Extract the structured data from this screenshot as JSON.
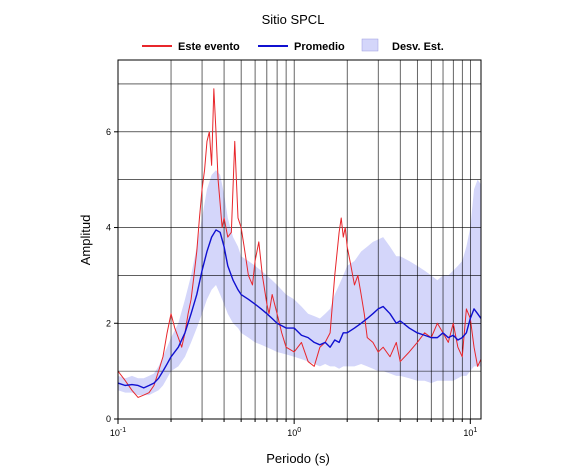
{
  "chart_data": {
    "type": "line",
    "title": "Sitio SPCL",
    "xlabel": "Periodo (s)",
    "ylabel": "Amplitud",
    "xscale": "log",
    "xlim": [
      0.1,
      11.5
    ],
    "ylim": [
      0,
      7.5
    ],
    "grid": true,
    "legend_position": "top",
    "x_ticks": [
      {
        "value": 0.1,
        "base": "10",
        "exp": "-1"
      },
      {
        "value": 1,
        "base": "10",
        "exp": "0"
      },
      {
        "value": 10,
        "base": "10",
        "exp": "1"
      }
    ],
    "y_ticks": [
      {
        "value": 0,
        "label": "0"
      },
      {
        "value": 2,
        "label": "2"
      },
      {
        "value": 4,
        "label": "4"
      },
      {
        "value": 6,
        "label": "6"
      }
    ],
    "legend": [
      {
        "label": "Este evento",
        "kind": "line",
        "color": "#e8262b"
      },
      {
        "label": "Promedio",
        "kind": "line",
        "color": "#1010d0"
      },
      {
        "label": "Desv. Est.",
        "kind": "band",
        "color": "#d4d6fa"
      }
    ],
    "series": [
      {
        "name": "Este evento",
        "color": "#e8262b",
        "x": [
          0.1,
          0.11,
          0.12,
          0.13,
          0.14,
          0.15,
          0.16,
          0.17,
          0.18,
          0.19,
          0.2,
          0.21,
          0.22,
          0.23,
          0.24,
          0.25,
          0.26,
          0.27,
          0.28,
          0.29,
          0.3,
          0.31,
          0.32,
          0.33,
          0.34,
          0.35,
          0.36,
          0.37,
          0.38,
          0.39,
          0.4,
          0.42,
          0.44,
          0.46,
          0.48,
          0.5,
          0.52,
          0.55,
          0.58,
          0.6,
          0.63,
          0.66,
          0.7,
          0.72,
          0.75,
          0.8,
          0.85,
          0.9,
          1.0,
          1.1,
          1.2,
          1.3,
          1.4,
          1.5,
          1.6,
          1.7,
          1.8,
          1.85,
          1.9,
          1.95,
          2.0,
          2.1,
          2.2,
          2.3,
          2.4,
          2.5,
          2.6,
          2.8,
          3.0,
          3.2,
          3.5,
          3.8,
          4.0,
          4.5,
          5.0,
          5.5,
          6.0,
          6.5,
          7.0,
          7.5,
          8.0,
          8.5,
          9.0,
          9.5,
          10.0,
          10.5,
          11.0,
          11.5
        ],
        "y": [
          1.0,
          0.8,
          0.6,
          0.45,
          0.5,
          0.55,
          0.7,
          1.0,
          1.3,
          1.8,
          2.2,
          1.9,
          1.7,
          1.5,
          1.8,
          2.2,
          2.5,
          3.0,
          3.5,
          4.2,
          4.8,
          5.2,
          5.8,
          6.0,
          5.3,
          6.9,
          6.0,
          5.0,
          4.5,
          4.0,
          4.2,
          3.8,
          3.9,
          5.8,
          4.2,
          4.0,
          3.6,
          3.0,
          2.8,
          3.3,
          3.7,
          3.0,
          2.4,
          2.2,
          2.6,
          2.2,
          1.8,
          1.5,
          1.4,
          1.6,
          1.2,
          1.1,
          1.5,
          1.6,
          1.8,
          3.0,
          3.9,
          4.2,
          3.8,
          4.0,
          3.6,
          3.2,
          2.8,
          3.0,
          2.6,
          2.2,
          1.7,
          1.6,
          1.4,
          1.5,
          1.3,
          1.6,
          1.2,
          1.4,
          1.6,
          1.8,
          1.7,
          2.0,
          1.8,
          1.6,
          2.0,
          1.5,
          1.3,
          2.3,
          2.1,
          1.5,
          1.1,
          1.25
        ]
      },
      {
        "name": "Promedio",
        "color": "#1010d0",
        "x": [
          0.1,
          0.11,
          0.12,
          0.13,
          0.14,
          0.15,
          0.16,
          0.17,
          0.18,
          0.19,
          0.2,
          0.22,
          0.24,
          0.26,
          0.28,
          0.3,
          0.32,
          0.34,
          0.36,
          0.38,
          0.4,
          0.42,
          0.45,
          0.48,
          0.5,
          0.55,
          0.6,
          0.65,
          0.7,
          0.75,
          0.8,
          0.9,
          1.0,
          1.1,
          1.2,
          1.3,
          1.4,
          1.5,
          1.6,
          1.7,
          1.8,
          1.9,
          2.0,
          2.2,
          2.4,
          2.6,
          2.8,
          3.0,
          3.2,
          3.5,
          3.8,
          4.0,
          4.5,
          5.0,
          5.5,
          6.0,
          6.5,
          7.0,
          7.5,
          8.0,
          8.5,
          9.0,
          9.5,
          10.0,
          10.5,
          11.0,
          11.5
        ],
        "y": [
          0.75,
          0.7,
          0.72,
          0.7,
          0.65,
          0.7,
          0.75,
          0.85,
          1.0,
          1.15,
          1.3,
          1.5,
          1.8,
          2.2,
          2.6,
          3.1,
          3.5,
          3.8,
          3.95,
          3.9,
          3.6,
          3.2,
          2.9,
          2.7,
          2.6,
          2.5,
          2.4,
          2.3,
          2.2,
          2.1,
          2.0,
          1.9,
          1.9,
          1.75,
          1.7,
          1.6,
          1.55,
          1.6,
          1.5,
          1.65,
          1.6,
          1.8,
          1.8,
          1.9,
          2.0,
          2.1,
          2.2,
          2.3,
          2.35,
          2.2,
          2.0,
          2.05,
          1.9,
          1.8,
          1.75,
          1.7,
          1.7,
          1.8,
          1.7,
          1.75,
          1.65,
          1.7,
          1.8,
          2.1,
          2.3,
          2.2,
          2.1
        ]
      }
    ],
    "band": {
      "name": "Desv. Est.",
      "color": "#d4d6fa",
      "x": [
        0.1,
        0.11,
        0.12,
        0.13,
        0.14,
        0.15,
        0.16,
        0.17,
        0.18,
        0.19,
        0.2,
        0.22,
        0.24,
        0.26,
        0.28,
        0.3,
        0.32,
        0.34,
        0.36,
        0.38,
        0.4,
        0.42,
        0.45,
        0.48,
        0.5,
        0.55,
        0.6,
        0.65,
        0.7,
        0.75,
        0.8,
        0.9,
        1.0,
        1.1,
        1.2,
        1.3,
        1.4,
        1.5,
        1.6,
        1.7,
        1.8,
        1.9,
        2.0,
        2.2,
        2.4,
        2.6,
        2.8,
        3.0,
        3.2,
        3.5,
        3.8,
        4.0,
        4.5,
        5.0,
        5.5,
        6.0,
        6.5,
        7.0,
        7.5,
        8.0,
        8.5,
        9.0,
        9.5,
        10.0,
        10.5,
        11.0,
        11.5
      ],
      "lower": [
        0.6,
        0.55,
        0.55,
        0.5,
        0.5,
        0.5,
        0.55,
        0.6,
        0.7,
        0.85,
        1.0,
        1.1,
        1.3,
        1.6,
        1.9,
        2.2,
        2.5,
        2.7,
        2.8,
        2.6,
        2.4,
        2.2,
        2.0,
        1.9,
        1.8,
        1.7,
        1.6,
        1.55,
        1.5,
        1.45,
        1.4,
        1.35,
        1.3,
        1.25,
        1.2,
        1.15,
        1.1,
        1.15,
        1.1,
        1.1,
        1.05,
        1.1,
        1.1,
        1.1,
        1.15,
        1.1,
        1.05,
        1.0,
        1.0,
        0.95,
        0.9,
        0.9,
        0.85,
        0.8,
        0.8,
        0.75,
        0.8,
        0.8,
        0.8,
        0.8,
        0.85,
        0.9,
        0.9,
        1.0,
        1.1,
        1.1,
        1.1
      ],
      "upper": [
        0.9,
        0.85,
        0.9,
        0.85,
        0.85,
        0.9,
        0.95,
        1.1,
        1.3,
        1.5,
        1.7,
        2.0,
        2.5,
        3.0,
        3.6,
        4.2,
        4.8,
        5.1,
        5.2,
        5.1,
        4.7,
        4.2,
        3.8,
        3.6,
        3.4,
        3.3,
        3.2,
        3.1,
        3.0,
        2.9,
        2.8,
        2.6,
        2.5,
        2.35,
        2.2,
        2.15,
        2.1,
        2.2,
        2.3,
        2.6,
        2.8,
        3.0,
        3.2,
        3.3,
        3.5,
        3.6,
        3.7,
        3.75,
        3.8,
        3.6,
        3.4,
        3.4,
        3.3,
        3.2,
        3.1,
        3.0,
        2.9,
        3.0,
        3.0,
        3.1,
        3.2,
        3.3,
        3.6,
        4.0,
        4.8,
        5.0,
        4.9
      ]
    }
  }
}
